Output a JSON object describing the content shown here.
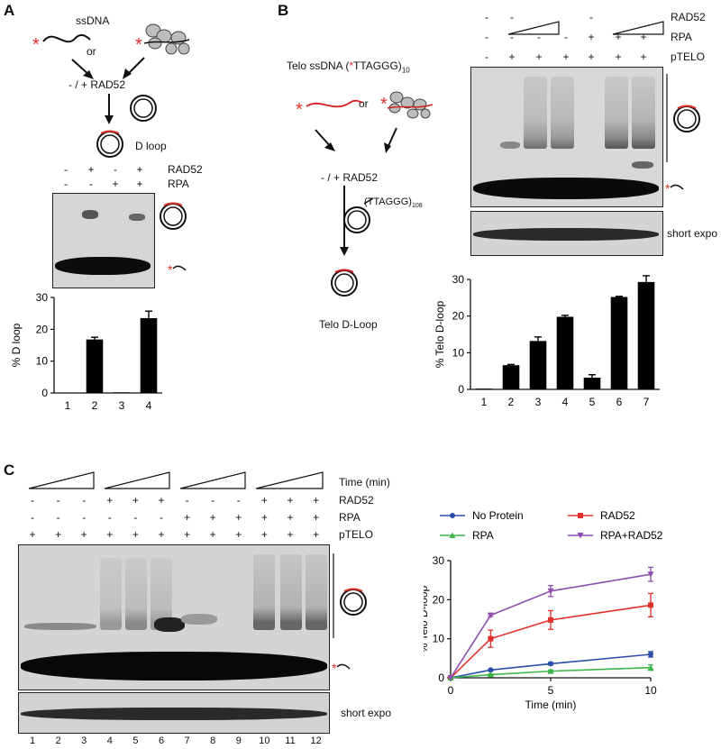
{
  "panelA": {
    "letter": "A",
    "ssdna_label": "ssDNA",
    "or_label": "or",
    "rad52_step": "- / + RAD52",
    "dloop_label": "D loop",
    "rows": [
      {
        "name": "RAD52",
        "signs": [
          "-",
          "+",
          "-",
          "+"
        ]
      },
      {
        "name": "RPA",
        "signs": [
          "-",
          "-",
          "+",
          "+"
        ]
      }
    ],
    "chart_data": {
      "type": "bar",
      "categories": [
        "1",
        "2",
        "3",
        "4"
      ],
      "values": [
        0,
        16.8,
        0.2,
        23.5
      ],
      "errors": [
        0,
        0.7,
        0,
        2.2
      ],
      "ylabel": "% D loop",
      "ylim": [
        0,
        30
      ],
      "yticks": [
        "0",
        "10",
        "20",
        "30"
      ]
    }
  },
  "panelB": {
    "letter": "B",
    "telo_ssdna_main": "Telo ssDNA (",
    "telo_ssdna_star": "*",
    "telo_ssdna_seq": "TTAGGG)",
    "telo_ssdna_sub": "10",
    "or_label": "or",
    "rad52_step": "- / + RAD52",
    "plasmid_label": "(TTAGGG)",
    "plasmid_sub": "108",
    "result_label": "Telo D-Loop",
    "rows": [
      {
        "name": "RAD52",
        "signs": [
          "-",
          "-",
          "",
          "",
          "-",
          "",
          ""
        ]
      },
      {
        "name": "RPA",
        "signs": [
          "-",
          "-",
          "-",
          "-",
          "+",
          "+",
          "+"
        ]
      },
      {
        "name": "pTELO",
        "signs": [
          "-",
          "+",
          "+",
          "+",
          "+",
          "+",
          "+"
        ]
      }
    ],
    "short_expo": "short expo",
    "chart_data": {
      "type": "bar",
      "categories": [
        "1",
        "2",
        "3",
        "4",
        "5",
        "6",
        "7"
      ],
      "values": [
        0.2,
        6.6,
        13.2,
        19.8,
        3.2,
        25.2,
        29.3
      ],
      "errors": [
        0,
        0.2,
        1.1,
        0.4,
        0.8,
        0.2,
        1.7
      ],
      "ylabel": "% Telo D-loop",
      "ylim": [
        0,
        30
      ],
      "yticks": [
        "0",
        "10",
        "20",
        "30"
      ]
    }
  },
  "panelC": {
    "letter": "C",
    "time_label": "Time (min)",
    "rows": [
      {
        "name": "RAD52",
        "signs": [
          "-",
          "-",
          "-",
          "+",
          "+",
          "+",
          "-",
          "-",
          "-",
          "+",
          "+",
          "+"
        ]
      },
      {
        "name": "RPA",
        "signs": [
          "-",
          "-",
          "-",
          "-",
          "-",
          "-",
          "+",
          "+",
          "+",
          "+",
          "+",
          "+"
        ]
      },
      {
        "name": "pTELO",
        "signs": [
          "+",
          "+",
          "+",
          "+",
          "+",
          "+",
          "+",
          "+",
          "+",
          "+",
          "+",
          "+"
        ]
      }
    ],
    "short_expo": "short expo",
    "lanes": [
      "1",
      "2",
      "3",
      "4",
      "5",
      "6",
      "7",
      "8",
      "9",
      "10",
      "11",
      "12"
    ],
    "chart_data": {
      "type": "line",
      "x": [
        0,
        2,
        5,
        10
      ],
      "xlabel": "Time (min)",
      "ylabel": "% Telo D-loop",
      "xlim": [
        0,
        10
      ],
      "ylim": [
        0,
        30
      ],
      "xticks": [
        "0",
        "5",
        "10"
      ],
      "yticks": [
        "0",
        "10",
        "20",
        "30"
      ],
      "legend_position": "top",
      "series": [
        {
          "name": "No Protein",
          "color": "#2b4fa8",
          "marker": "circle",
          "values": [
            0,
            2,
            3.6,
            6
          ],
          "errors": [
            0,
            0.2,
            0.3,
            0.7
          ]
        },
        {
          "name": "RAD52",
          "color": "#e0302a",
          "marker": "square",
          "values": [
            0,
            10,
            14.8,
            18.6
          ],
          "errors": [
            0,
            2.2,
            2.4,
            3
          ]
        },
        {
          "name": "RPA",
          "color": "#3cb54a",
          "marker": "triangle-up",
          "values": [
            0,
            0.8,
            1.7,
            2.6
          ],
          "errors": [
            0,
            0.2,
            0.3,
            0.7
          ]
        },
        {
          "name": "RPA+RAD52",
          "color": "#8e4fb0",
          "marker": "triangle-down",
          "values": [
            0,
            16,
            22.2,
            26.5
          ],
          "errors": [
            0,
            0.3,
            1.4,
            1.8
          ]
        }
      ]
    }
  }
}
